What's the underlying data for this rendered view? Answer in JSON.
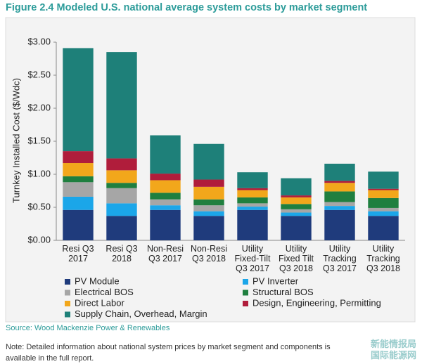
{
  "chart_data": {
    "type": "stacked_bar",
    "title": "Figure 2.4 Modeled U.S. national average system costs by market segment",
    "y_label": "Turnkey Installed Cost ($/Wdc)",
    "categories": [
      "Resi Q3 2017",
      "Resi Q3 2018",
      "Non-Resi Q3 2017",
      "Non-Resi Q3 2018",
      "Utility Fixed-Tilt Q3 2017",
      "Utility Fixed Tilt Q3 2018",
      "Utility Tracking Q3 2017",
      "Utility Tracking Q3 2018"
    ],
    "series": [
      {
        "name": "PV Module",
        "color": "#1f3b7c",
        "values": [
          0.46,
          0.37,
          0.46,
          0.37,
          0.46,
          0.37,
          0.46,
          0.37
        ]
      },
      {
        "name": "PV Inverter",
        "color": "#1ba6e9",
        "values": [
          0.2,
          0.19,
          0.07,
          0.07,
          0.05,
          0.05,
          0.06,
          0.07
        ]
      },
      {
        "name": "Electrical BOS",
        "color": "#a6a6a6",
        "values": [
          0.22,
          0.23,
          0.09,
          0.09,
          0.05,
          0.05,
          0.06,
          0.05
        ]
      },
      {
        "name": "Structural BOS",
        "color": "#1f7f3f",
        "values": [
          0.09,
          0.08,
          0.1,
          0.09,
          0.09,
          0.08,
          0.16,
          0.15
        ]
      },
      {
        "name": "Direct Labor",
        "color": "#f2a71b",
        "values": [
          0.2,
          0.19,
          0.19,
          0.19,
          0.11,
          0.1,
          0.13,
          0.12
        ]
      },
      {
        "name": "Design, Engineering, Permitting",
        "color": "#b01d3b",
        "values": [
          0.18,
          0.18,
          0.1,
          0.11,
          0.03,
          0.03,
          0.03,
          0.02
        ]
      },
      {
        "name": "Supply Chain, Overhead, Margin",
        "color": "#1e8079",
        "values": [
          1.56,
          1.61,
          0.58,
          0.54,
          0.24,
          0.26,
          0.26,
          0.26
        ]
      }
    ],
    "ylim": [
      0,
      3
    ],
    "yticks": [
      {
        "value": 0,
        "label": "$0.00"
      },
      {
        "value": 0.5,
        "label": "$0.50"
      },
      {
        "value": 1,
        "label": "$1.00"
      },
      {
        "value": 1.5,
        "label": "$1.50"
      },
      {
        "value": 2,
        "label": "$2.00"
      },
      {
        "value": 2.5,
        "label": "$2.50"
      },
      {
        "value": 3,
        "label": "$3.00"
      }
    ],
    "grid": false,
    "source": "Source: Wood Mackenzie Power & Renewables",
    "note": "Note: Detailed information about national system prices by market segment and components is available in the full report.",
    "watermark": [
      "新能情报局",
      "国际能源网"
    ]
  }
}
